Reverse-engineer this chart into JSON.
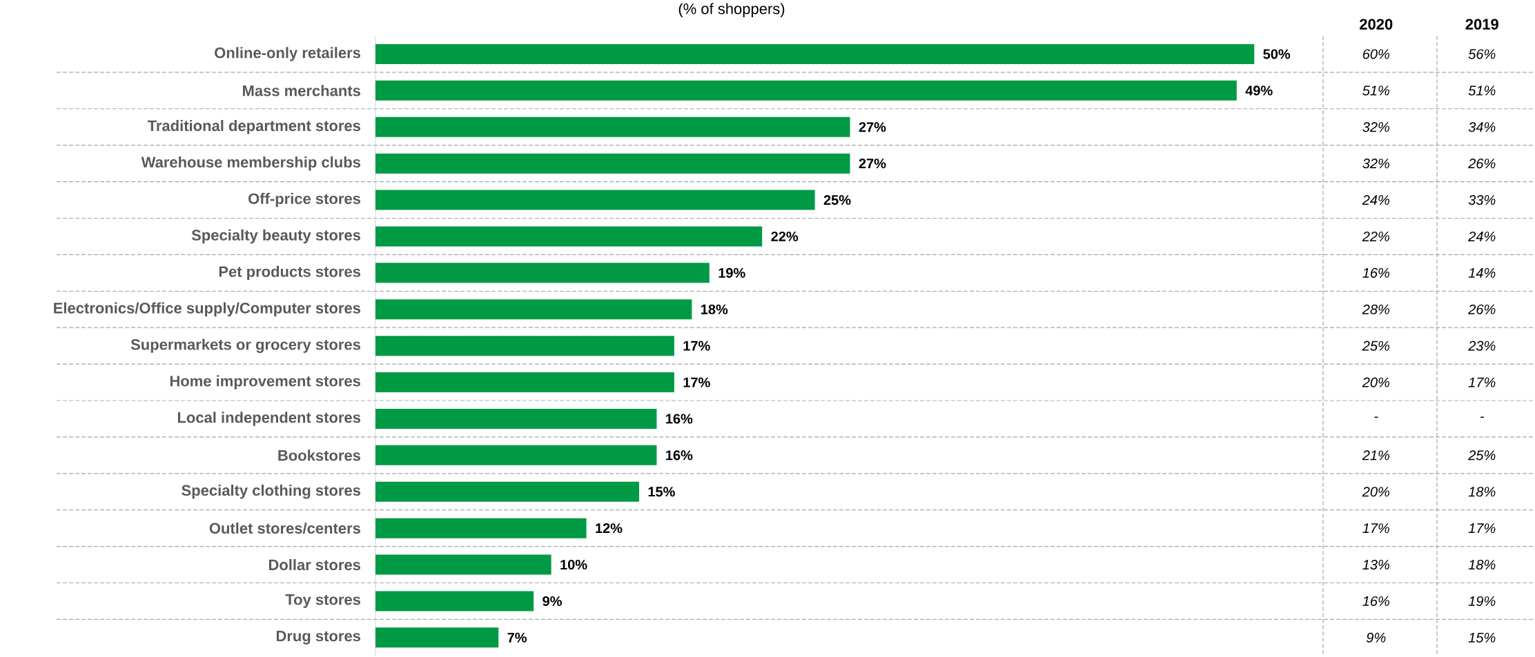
{
  "chart_data": [
    {
      "type": "bar",
      "orientation": "horizontal",
      "title": "(% of shoppers)",
      "categories": [
        "Online-only retailers",
        "Mass merchants",
        "Traditional department stores",
        "Warehouse membership clubs",
        "Off-price stores",
        "Specialty beauty stores",
        "Pet products stores",
        "Electronics/Office supply/Computer stores",
        "Supermarkets or grocery stores",
        "Home improvement stores",
        "Local independent stores",
        "Bookstores",
        "Specialty clothing stores",
        "Outlet stores/centers",
        "Dollar stores",
        "Toy stores",
        "Drug stores"
      ],
      "values": [
        50,
        49,
        27,
        27,
        25,
        22,
        19,
        18,
        17,
        17,
        16,
        16,
        15,
        12,
        10,
        9,
        7
      ],
      "value_labels": [
        "50%",
        "49%",
        "27%",
        "27%",
        "25%",
        "22%",
        "19%",
        "18%",
        "17%",
        "17%",
        "16%",
        "16%",
        "15%",
        "12%",
        "10%",
        "9%",
        "7%"
      ],
      "color": "#009a44",
      "tick_labels": "y"
    },
    {
      "type": "other",
      "categories": [
        "2020",
        "2019"
      ],
      "annotations": [
        "60%",
        "56%",
        "51%",
        "51%",
        "32%",
        "34%",
        "32%",
        "26%",
        "24%",
        "33%",
        "22%",
        "24%",
        "16%",
        "14%",
        "28%",
        "26%",
        "25%",
        "23%",
        "20%",
        "17%",
        "-",
        "-",
        "21%",
        "25%",
        "20%",
        "18%",
        "17%",
        "17%",
        "13%",
        "18%",
        "16%",
        "19%",
        "9%",
        "15%"
      ]
    }
  ]
}
